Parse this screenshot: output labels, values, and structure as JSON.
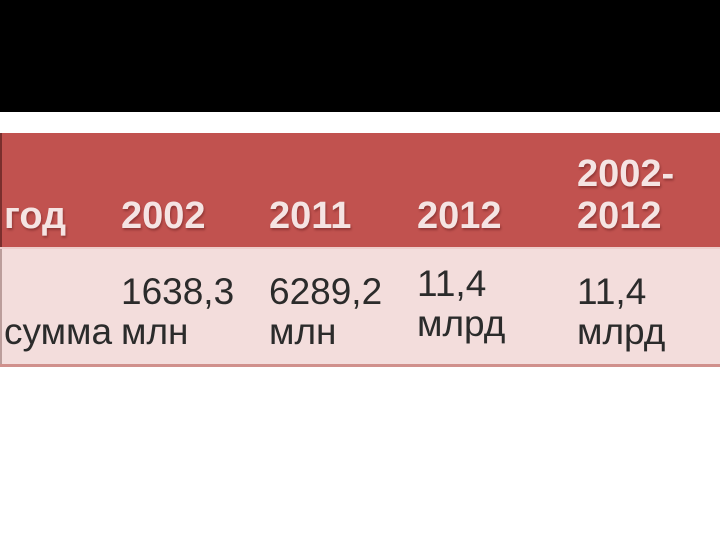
{
  "colors": {
    "slide_bg": "#ffffff",
    "title_block_bg": "#000000",
    "table_header_bg": "#c1524f",
    "table_header_text": "#f5e4e3",
    "table_row_bg": "#f3dddc",
    "table_row_border": "#d0908c",
    "table_body_text": "#2b2b2b"
  },
  "table": {
    "header": [
      "год",
      "2002",
      "2011",
      "2012",
      "2002-2012"
    ],
    "rows": [
      [
        "сумма",
        "1638,3 млн",
        "6289,2 млн",
        "11,4 млрд",
        "11,4 млрд"
      ]
    ]
  }
}
